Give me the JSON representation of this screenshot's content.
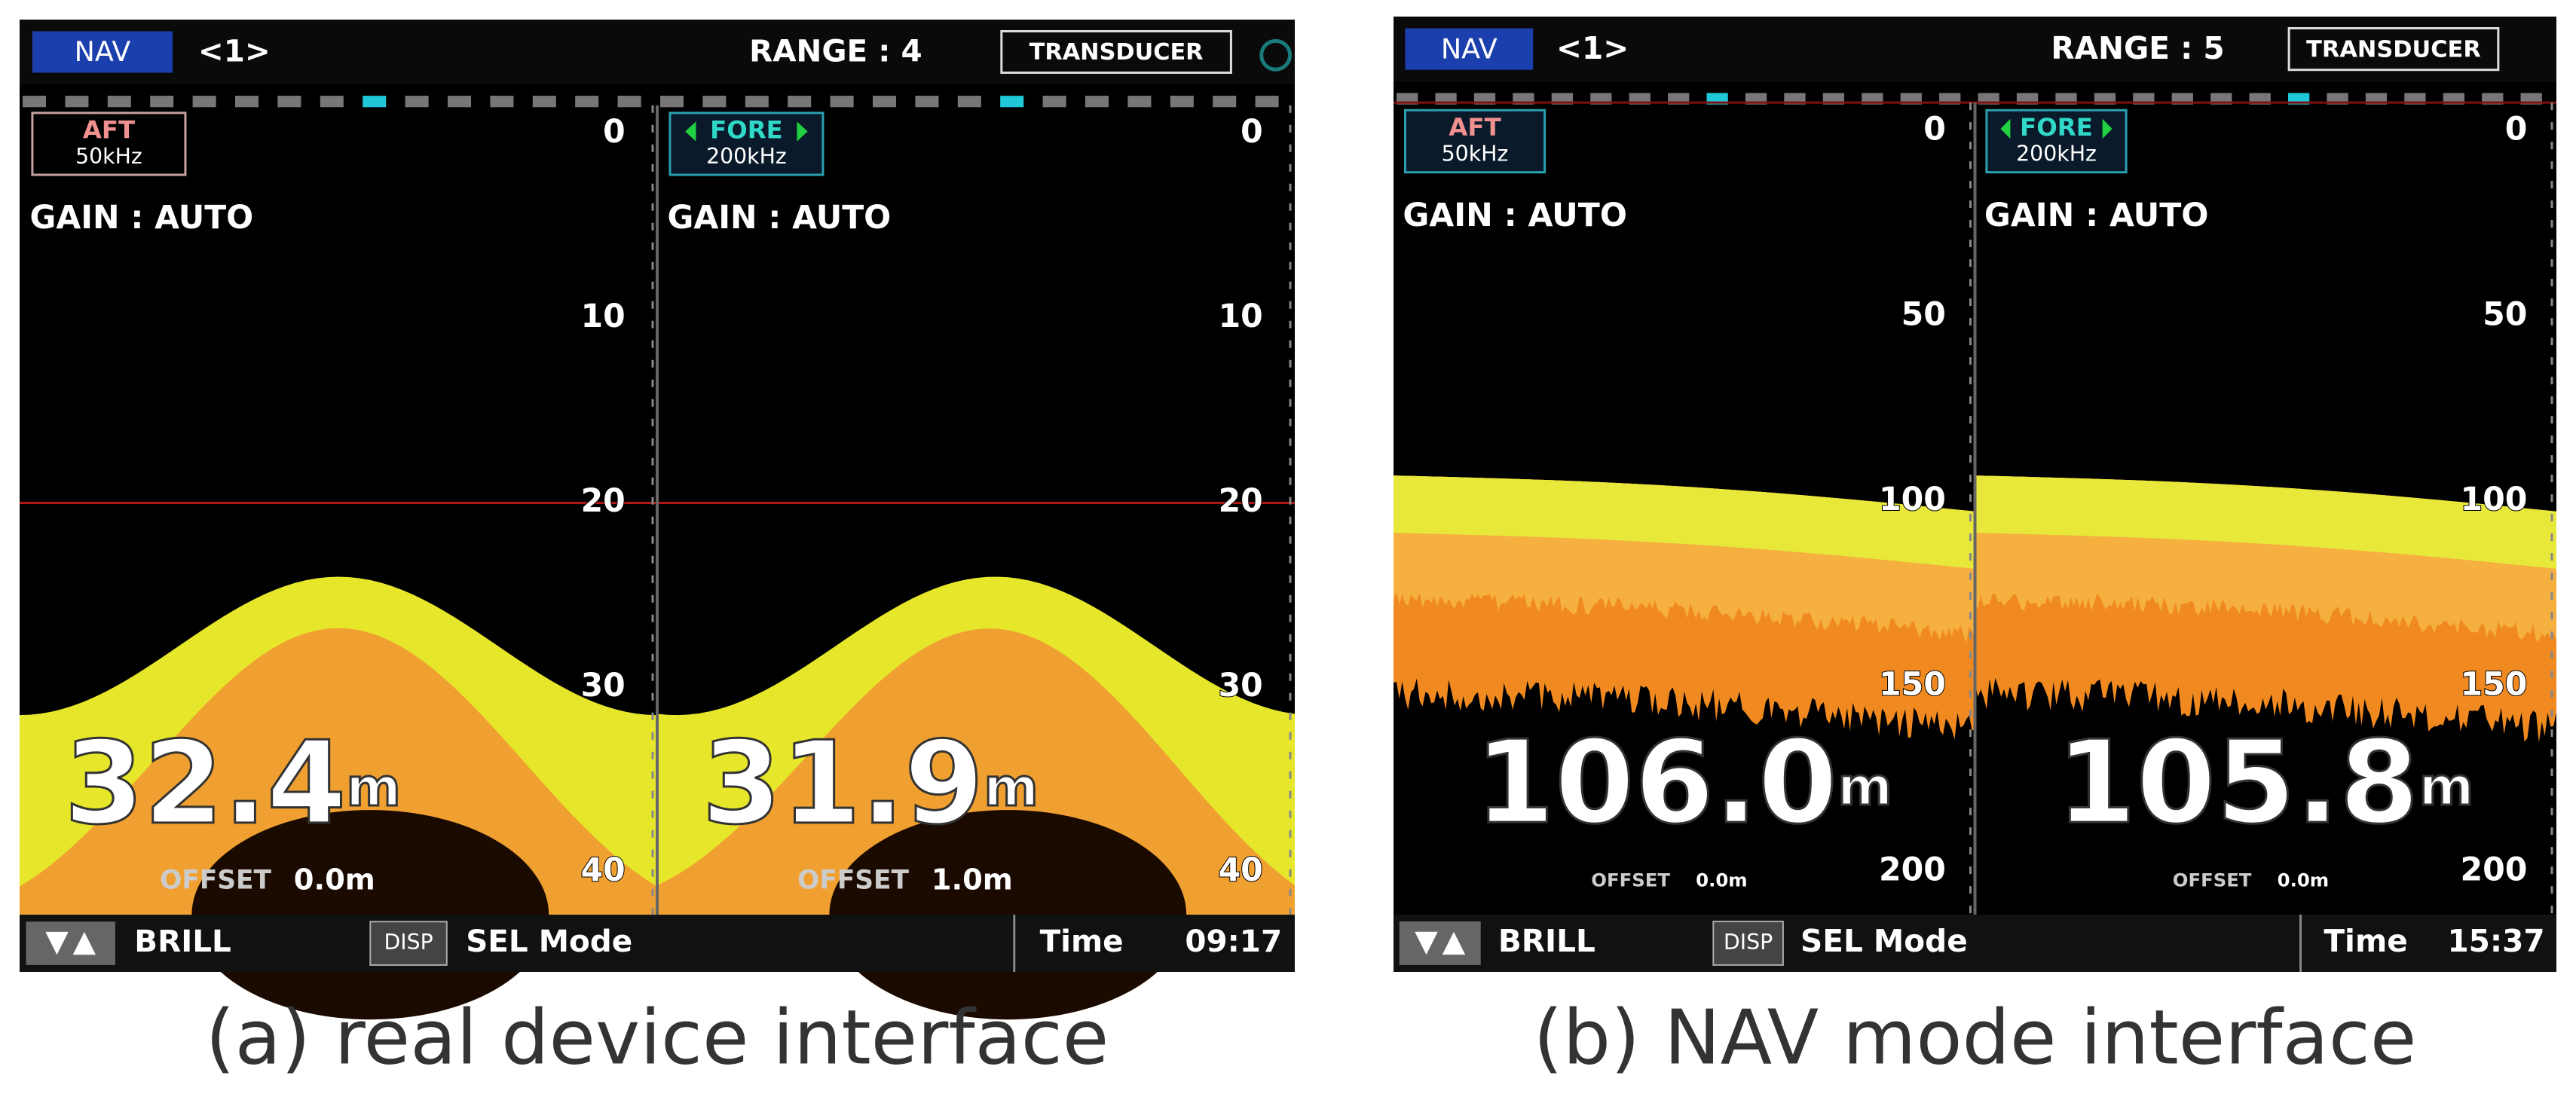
{
  "panels": [
    {
      "caption": "(a) real device interface",
      "header": {
        "mode": "NAV",
        "page": "<1>",
        "range": "RANGE : 4",
        "transducer": "TRANSDUCER"
      },
      "channels": [
        {
          "name": "AFT",
          "freq": "50kHz",
          "gain": "GAIN : AUTO",
          "depth": "32.4",
          "unit": "m",
          "offset_label": "OFFSET",
          "offset": "0.0m"
        },
        {
          "name": "FORE",
          "freq": "200kHz",
          "gain": "GAIN : AUTO",
          "depth": "31.9",
          "unit": "m",
          "offset_label": "OFFSET",
          "offset": "1.0m"
        }
      ],
      "depth_ticks": [
        0,
        10,
        20,
        30,
        40
      ],
      "footer": {
        "brill": "BRILL",
        "disp": "DISP",
        "sel": "SEL Mode",
        "time_label": "Time",
        "time": "09:17"
      }
    },
    {
      "caption": "(b) NAV mode interface",
      "header": {
        "mode": "NAV",
        "page": "<1>",
        "range": "RANGE : 5",
        "transducer": "TRANSDUCER"
      },
      "channels": [
        {
          "name": "AFT",
          "freq": "50kHz",
          "gain": "GAIN :  AUTO",
          "depth": "106.0",
          "unit": "m",
          "offset_label": "OFFSET",
          "offset": "0.0m"
        },
        {
          "name": "FORE",
          "freq": "200kHz",
          "gain": "GAIN :  AUTO",
          "depth": "105.8",
          "unit": "m",
          "offset_label": "OFFSET",
          "offset": "0.0m"
        }
      ],
      "depth_ticks": [
        0,
        50,
        100,
        150,
        200
      ],
      "footer": {
        "brill": "BRILL",
        "disp": "DISP",
        "sel": "SEL Mode",
        "time_label": "Time",
        "time": "15:37"
      }
    }
  ]
}
